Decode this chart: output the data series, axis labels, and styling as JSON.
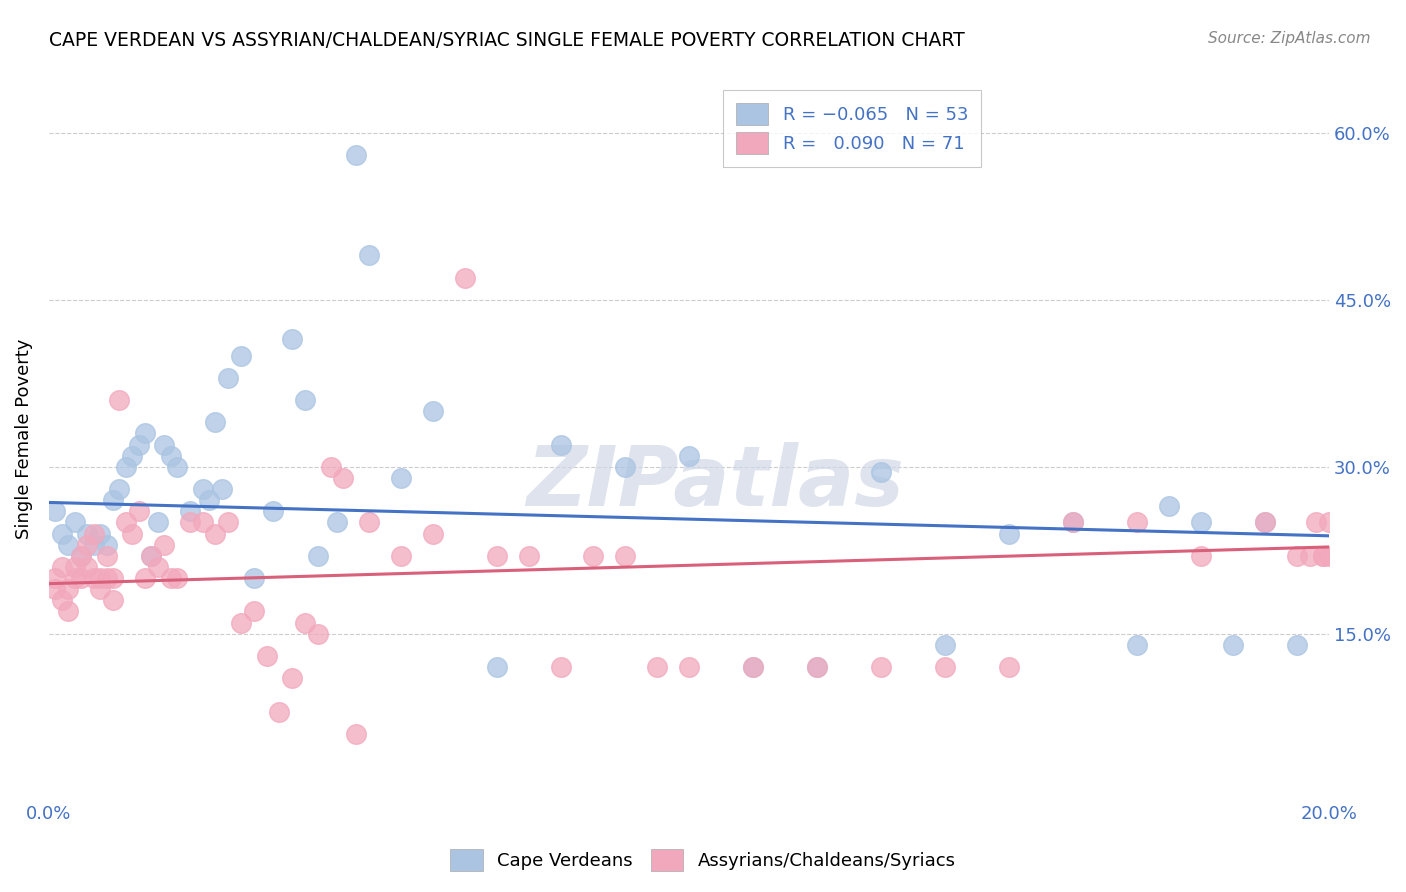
{
  "title": "CAPE VERDEAN VS ASSYRIAN/CHALDEAN/SYRIAC SINGLE FEMALE POVERTY CORRELATION CHART",
  "source": "Source: ZipAtlas.com",
  "ylabel": "Single Female Poverty",
  "xlim": [
    0.0,
    0.2
  ],
  "ylim": [
    0.0,
    0.65
  ],
  "x_ticks": [
    0.0,
    0.05,
    0.1,
    0.15,
    0.2
  ],
  "x_tick_labels": [
    "0.0%",
    "",
    "",
    "",
    "20.0%"
  ],
  "y_ticks": [
    0.15,
    0.3,
    0.45,
    0.6
  ],
  "y_tick_labels_right": [
    "15.0%",
    "30.0%",
    "45.0%",
    "60.0%"
  ],
  "color_blue": "#aac4e2",
  "color_pink": "#f2a8bc",
  "line_color_blue": "#4472c4",
  "line_color_pink": "#d9607a",
  "background_color": "#ffffff",
  "grid_color": "#cccccc",
  "blue_x": [
    0.001,
    0.002,
    0.003,
    0.004,
    0.005,
    0.006,
    0.007,
    0.008,
    0.009,
    0.01,
    0.011,
    0.012,
    0.013,
    0.014,
    0.015,
    0.016,
    0.017,
    0.018,
    0.019,
    0.02,
    0.022,
    0.024,
    0.025,
    0.026,
    0.027,
    0.028,
    0.03,
    0.032,
    0.035,
    0.038,
    0.04,
    0.042,
    0.045,
    0.048,
    0.05,
    0.055,
    0.06,
    0.07,
    0.08,
    0.09,
    0.1,
    0.11,
    0.12,
    0.13,
    0.14,
    0.15,
    0.16,
    0.17,
    0.175,
    0.18,
    0.185,
    0.19,
    0.195
  ],
  "blue_y": [
    0.26,
    0.24,
    0.23,
    0.25,
    0.22,
    0.24,
    0.23,
    0.24,
    0.23,
    0.27,
    0.28,
    0.3,
    0.31,
    0.32,
    0.33,
    0.22,
    0.25,
    0.32,
    0.31,
    0.3,
    0.26,
    0.28,
    0.27,
    0.34,
    0.28,
    0.38,
    0.4,
    0.2,
    0.26,
    0.415,
    0.36,
    0.22,
    0.25,
    0.58,
    0.49,
    0.29,
    0.35,
    0.12,
    0.32,
    0.3,
    0.31,
    0.12,
    0.12,
    0.295,
    0.14,
    0.24,
    0.25,
    0.14,
    0.265,
    0.25,
    0.14,
    0.25,
    0.14
  ],
  "pink_x": [
    0.001,
    0.001,
    0.002,
    0.002,
    0.003,
    0.003,
    0.004,
    0.004,
    0.005,
    0.005,
    0.006,
    0.006,
    0.007,
    0.007,
    0.008,
    0.008,
    0.009,
    0.009,
    0.01,
    0.01,
    0.011,
    0.012,
    0.013,
    0.014,
    0.015,
    0.016,
    0.017,
    0.018,
    0.019,
    0.02,
    0.022,
    0.024,
    0.026,
    0.028,
    0.03,
    0.032,
    0.034,
    0.036,
    0.038,
    0.04,
    0.042,
    0.044,
    0.046,
    0.048,
    0.05,
    0.055,
    0.06,
    0.065,
    0.07,
    0.075,
    0.08,
    0.085,
    0.09,
    0.095,
    0.1,
    0.11,
    0.12,
    0.13,
    0.14,
    0.15,
    0.16,
    0.17,
    0.18,
    0.19,
    0.195,
    0.197,
    0.198,
    0.199,
    0.199,
    0.2,
    0.2
  ],
  "pink_y": [
    0.2,
    0.19,
    0.21,
    0.18,
    0.19,
    0.17,
    0.2,
    0.21,
    0.22,
    0.2,
    0.23,
    0.21,
    0.24,
    0.2,
    0.19,
    0.2,
    0.22,
    0.2,
    0.18,
    0.2,
    0.36,
    0.25,
    0.24,
    0.26,
    0.2,
    0.22,
    0.21,
    0.23,
    0.2,
    0.2,
    0.25,
    0.25,
    0.24,
    0.25,
    0.16,
    0.17,
    0.13,
    0.08,
    0.11,
    0.16,
    0.15,
    0.3,
    0.29,
    0.06,
    0.25,
    0.22,
    0.24,
    0.47,
    0.22,
    0.22,
    0.12,
    0.22,
    0.22,
    0.12,
    0.12,
    0.12,
    0.12,
    0.12,
    0.12,
    0.12,
    0.25,
    0.25,
    0.22,
    0.25,
    0.22,
    0.22,
    0.25,
    0.22,
    0.22,
    0.25,
    0.22
  ],
  "blue_line_x": [
    0.0,
    0.2
  ],
  "blue_line_y": [
    0.268,
    0.238
  ],
  "pink_line_x": [
    0.0,
    0.2
  ],
  "pink_line_y": [
    0.195,
    0.228
  ]
}
